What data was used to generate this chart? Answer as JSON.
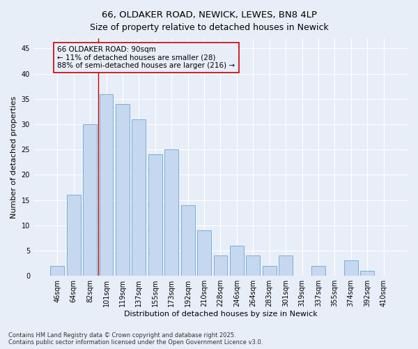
{
  "title": "66, OLDAKER ROAD, NEWICK, LEWES, BN8 4LP",
  "subtitle": "Size of property relative to detached houses in Newick",
  "xlabel": "Distribution of detached houses by size in Newick",
  "ylabel": "Number of detached properties",
  "categories": [
    "46sqm",
    "64sqm",
    "82sqm",
    "101sqm",
    "119sqm",
    "137sqm",
    "155sqm",
    "173sqm",
    "192sqm",
    "210sqm",
    "228sqm",
    "246sqm",
    "264sqm",
    "283sqm",
    "301sqm",
    "319sqm",
    "337sqm",
    "355sqm",
    "374sqm",
    "392sqm",
    "410sqm"
  ],
  "values": [
    2,
    16,
    30,
    36,
    34,
    31,
    24,
    25,
    14,
    9,
    4,
    6,
    4,
    2,
    4,
    0,
    2,
    0,
    3,
    1,
    0
  ],
  "bar_color": "#c5d8f0",
  "bar_edge_color": "#7bafd4",
  "background_color": "#e8eef7",
  "grid_color": "#ffffff",
  "annotation_box_color": "#cc0000",
  "annotation_text_line1": "66 OLDAKER ROAD: 90sqm",
  "annotation_text_line2": "← 11% of detached houses are smaller (28)",
  "annotation_text_line3": "88% of semi-detached houses are larger (216) →",
  "vline_x_index": 2.5,
  "ylim": [
    0,
    47
  ],
  "yticks": [
    0,
    5,
    10,
    15,
    20,
    25,
    30,
    35,
    40,
    45
  ],
  "footer": "Contains HM Land Registry data © Crown copyright and database right 2025.\nContains public sector information licensed under the Open Government Licence v3.0.",
  "title_fontsize": 9.5,
  "tick_fontsize": 7,
  "ylabel_fontsize": 8,
  "xlabel_fontsize": 8,
  "annotation_fontsize": 7.5,
  "footer_fontsize": 6
}
